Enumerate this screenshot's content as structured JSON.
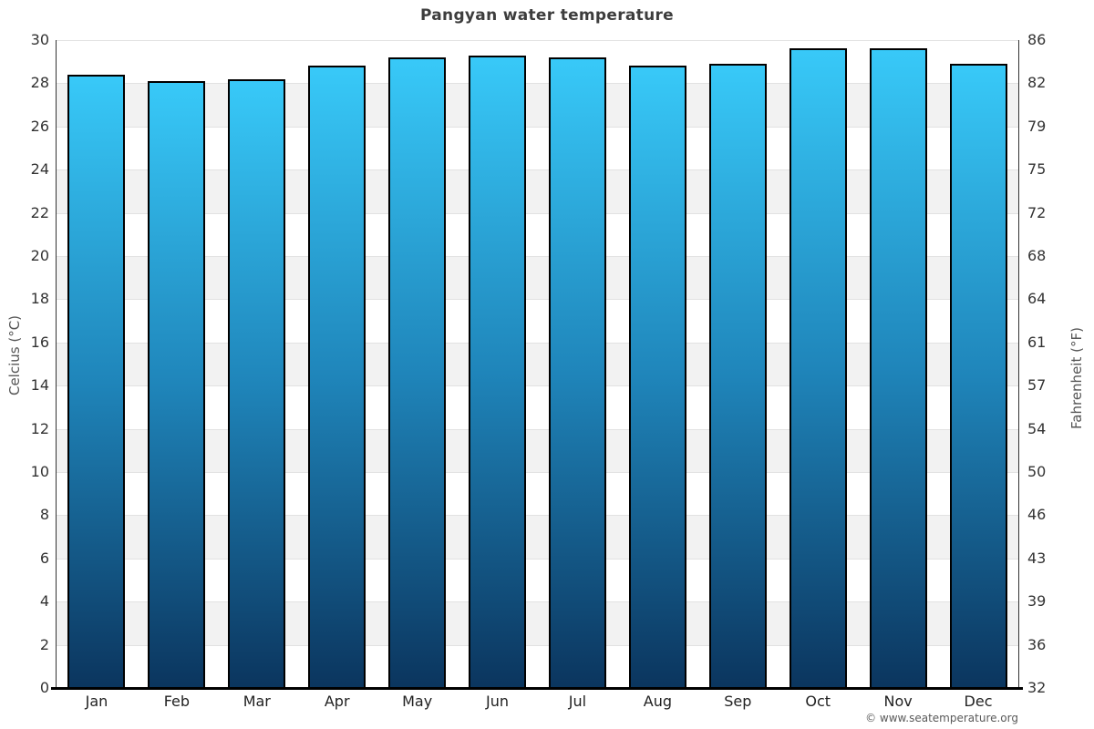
{
  "title": "Pangyan water temperature",
  "axes": {
    "left_title": "Celcius (°C)",
    "right_title": "Fahrenheit (°F)"
  },
  "footer": {
    "copyright": "© www.seatemperature.org"
  },
  "chart_data": {
    "type": "bar",
    "title": "Pangyan water temperature",
    "categories": [
      "Jan",
      "Feb",
      "Mar",
      "Apr",
      "May",
      "Jun",
      "Jul",
      "Aug",
      "Sep",
      "Oct",
      "Nov",
      "Dec"
    ],
    "values": [
      28.4,
      28.1,
      28.2,
      28.8,
      29.2,
      29.3,
      29.2,
      28.8,
      28.9,
      29.6,
      29.6,
      28.9
    ],
    "unit": "°C",
    "xlabel": "",
    "ylabel_left": "Celcius (°C)",
    "ylabel_right": "Fahrenheit (°F)",
    "ylim": [
      0,
      30
    ],
    "yticks_celsius": [
      30,
      28,
      26,
      24,
      22,
      20,
      18,
      16,
      14,
      12,
      10,
      8,
      6,
      4,
      2,
      0
    ],
    "yticks_fahrenheit": [
      86,
      82,
      79,
      75,
      72,
      68,
      64,
      61,
      57,
      54,
      50,
      46,
      43,
      39,
      36,
      32
    ],
    "grid": "horizontal-bands-alternating",
    "legend": "none",
    "colors": {
      "bar_gradient_top": "#38c9f8",
      "bar_gradient_mid": "#1f85ba",
      "bar_gradient_bottom": "#0b355e",
      "bar_border": "#000000",
      "band_shaded": "#f2f2f2",
      "band_plain": "#ffffff",
      "gridline": "#e2e2e2",
      "axis_line": "#333333",
      "baseline": "#000000"
    }
  }
}
